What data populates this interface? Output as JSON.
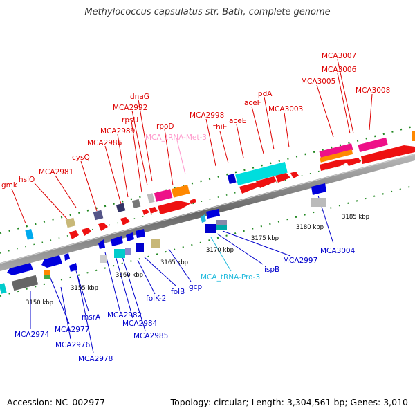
{
  "title": "Methylococcus capsulatus str. Bath, complete genome",
  "footer": {
    "accession": "Accession: NC_002977",
    "summary": "Topology: circular; Length: 3,304,561 bp; Genes: 3,010"
  },
  "colors": {
    "forward_label": "#dd0000",
    "reverse_label": "#0000cc",
    "rna_label_forward": "#ff99cc",
    "rna_label_reverse": "#22bbdd",
    "backbone": "#808080",
    "tick": "#228822"
  },
  "position_labels": [
    "3150 kbp",
    "3155 kbp",
    "3160 kbp",
    "3165 kbp",
    "3170 kbp",
    "3175 kbp",
    "3180 kbp",
    "3185 kbp"
  ],
  "forward_labels": [
    "gmk",
    "hslO",
    "MCA2981",
    "cysQ",
    "MCA2986",
    "MCA2989",
    "rpsU",
    "MCA2992",
    "dnaG",
    "rpoD",
    "MCA_tRNA-Met-3",
    "MCA2998",
    "thiE",
    "aceE",
    "aceF",
    "lpdA",
    "MCA3003",
    "MCA3005",
    "MCA3006",
    "MCA3007",
    "MCA3008"
  ],
  "reverse_labels": [
    "MCA2974",
    "MCA2977",
    "MCA2976",
    "msrA",
    "MCA2978",
    "MCA2982",
    "MCA2984",
    "MCA2985",
    "folK-2",
    "folB",
    "gcp",
    "MCA_tRNA-Pro-3",
    "ispB",
    "MCA2997",
    "MCA3004"
  ]
}
